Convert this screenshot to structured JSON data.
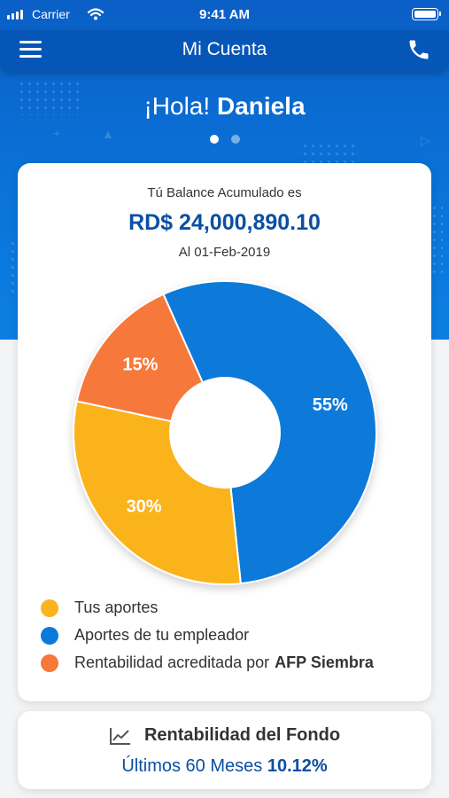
{
  "status_bar": {
    "carrier": "Carrier",
    "time": "9:41 AM"
  },
  "navbar": {
    "title": "Mi Cuenta",
    "menu_icon": "hamburger-menu-icon",
    "phone_icon": "phone-icon"
  },
  "greeting": {
    "prefix": "¡Hola!",
    "name": "Daniela"
  },
  "pager": {
    "pages": 2,
    "active": 0
  },
  "balance": {
    "label": "Tú Balance Acumulado es",
    "amount": "RD$ 24,000,890.10",
    "date": "Al 01-Feb-2019"
  },
  "chart_data": {
    "type": "pie",
    "title": "",
    "donut": true,
    "slices": [
      {
        "label": "Aportes de tu empleador",
        "value": 55,
        "display": "55%",
        "color": "#0a7ad9"
      },
      {
        "label": "Tus aportes",
        "value": 30,
        "display": "30%",
        "color": "#fbb31f"
      },
      {
        "label": "Rentabilidad acreditada por AFP Siembra",
        "value": 15,
        "display": "15%",
        "color": "#f6793a"
      }
    ]
  },
  "legend": [
    {
      "text": "Tus aportes",
      "bold": "",
      "color": "#fbb31f"
    },
    {
      "text": "Aportes de tu empleador",
      "bold": "",
      "color": "#0a7ad9"
    },
    {
      "text": "Rentabilidad acreditada por",
      "bold": "AFP Siembra",
      "color": "#f6793a"
    }
  ],
  "fund": {
    "icon": "line-chart-icon",
    "title": "Rentabilidad del Fondo",
    "period": "Últimos 60 Meses",
    "value": "10.12%"
  },
  "colors": {
    "header_blue": "#0656b8",
    "accent_blue": "#0a4fa3"
  }
}
